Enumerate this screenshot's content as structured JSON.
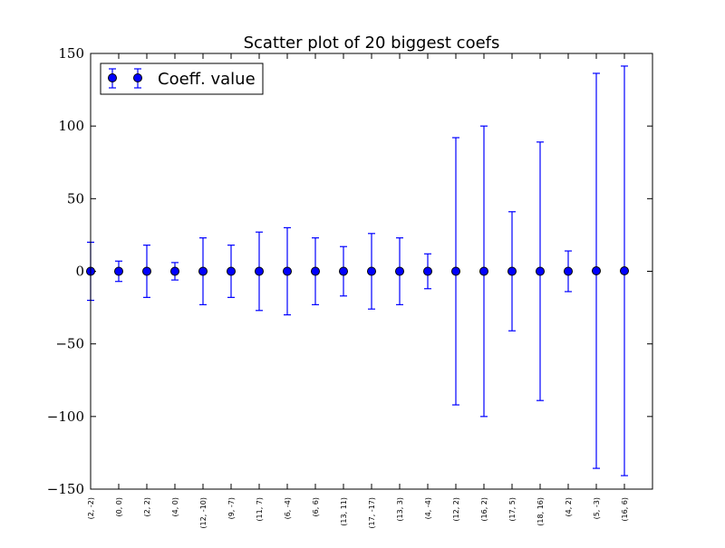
{
  "chart_data": {
    "type": "scatter",
    "title": "Scatter plot of 20 biggest coefs",
    "xlabel": "",
    "ylabel": "",
    "categories": [
      "(2, -2)",
      "(0, 0)",
      "(2, 2)",
      "(4, 0)",
      "(12, -10)",
      "(9, -7)",
      "(11, 7)",
      "(6, -4)",
      "(6, 6)",
      "(13, 11)",
      "(17, -17)",
      "(13, 3)",
      "(4, -4)",
      "(12, 2)",
      "(16, 2)",
      "(17, 5)",
      "(18, 16)",
      "(4, 2)",
      "(5, -3)",
      "(16, 6)"
    ],
    "series": [
      {
        "name": "Coeff. value",
        "values": [
          0,
          0,
          0,
          0,
          0,
          0,
          0,
          0,
          0,
          0,
          0,
          0,
          0,
          0,
          0,
          0,
          0,
          0,
          0.3,
          0.3
        ],
        "errors": [
          20,
          7,
          18,
          6,
          23,
          18,
          27,
          30,
          23,
          17,
          26,
          23,
          12,
          92,
          100,
          41,
          89,
          14,
          136,
          141
        ]
      }
    ],
    "ylim": [
      -150,
      150
    ],
    "yticks": [
      {
        "value": -150,
        "label": "−150"
      },
      {
        "value": -100,
        "label": "−100"
      },
      {
        "value": -50,
        "label": "−50"
      },
      {
        "value": 0,
        "label": "0"
      },
      {
        "value": 50,
        "label": "50"
      },
      {
        "value": 100,
        "label": "100"
      },
      {
        "value": 150,
        "label": "150"
      }
    ],
    "grid": false,
    "legend_position": "top-left",
    "colors": {
      "series": "#0000ff",
      "marker_edge": "#000000",
      "axes": "#000000"
    }
  }
}
